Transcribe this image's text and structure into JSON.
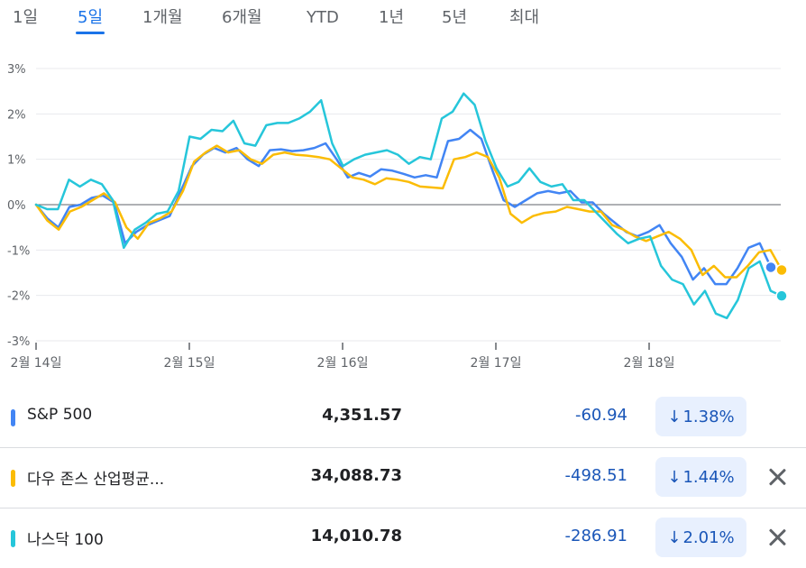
{
  "tabs": [
    {
      "label": "1일",
      "active": false
    },
    {
      "label": "5일",
      "active": true
    },
    {
      "label": "1개월",
      "active": false
    },
    {
      "label": "6개월",
      "active": false
    },
    {
      "label": "YTD",
      "active": false
    },
    {
      "label": "1년",
      "active": false
    },
    {
      "label": "5년",
      "active": false
    },
    {
      "label": "최대",
      "active": false
    }
  ],
  "chart_data": {
    "type": "line",
    "y_ticks": [
      "3%",
      "2%",
      "1%",
      "0%",
      "-1%",
      "-2%",
      "-3%"
    ],
    "ylim": [
      -3,
      3
    ],
    "x_ticks": [
      "2월 14일",
      "2월 15일",
      "2월 16일",
      "2월 17일",
      "2월 18일"
    ],
    "grid": true,
    "baseline": 0,
    "series": [
      {
        "name": "S&P 500",
        "color": "#4285f4",
        "values": [
          0,
          -0.3,
          -0.5,
          -0.05,
          0.0,
          0.15,
          0.2,
          0.05,
          -0.85,
          -0.6,
          -0.45,
          -0.35,
          -0.25,
          0.3,
          0.85,
          1.1,
          1.25,
          1.15,
          1.25,
          1.0,
          0.85,
          1.2,
          1.22,
          1.18,
          1.2,
          1.25,
          1.35,
          1.0,
          0.6,
          0.7,
          0.62,
          0.78,
          0.75,
          0.68,
          0.6,
          0.65,
          0.6,
          1.4,
          1.45,
          1.65,
          1.45,
          0.75,
          0.1,
          -0.05,
          0.1,
          0.25,
          0.3,
          0.25,
          0.3,
          0.05,
          0.05,
          -0.2,
          -0.4,
          -0.6,
          -0.7,
          -0.6,
          -0.45,
          -0.85,
          -1.15,
          -1.65,
          -1.4,
          -1.75,
          -1.75,
          -1.4,
          -0.95,
          -0.85,
          -1.38
        ]
      },
      {
        "name": "다우 존스 산업평균",
        "color": "#fbbc04",
        "values": [
          0,
          -0.35,
          -0.55,
          -0.15,
          -0.05,
          0.1,
          0.25,
          0.05,
          -0.5,
          -0.75,
          -0.4,
          -0.3,
          -0.15,
          0.3,
          0.95,
          1.15,
          1.3,
          1.15,
          1.2,
          1.0,
          0.9,
          1.1,
          1.15,
          1.1,
          1.08,
          1.05,
          1.0,
          0.8,
          0.6,
          0.55,
          0.45,
          0.58,
          0.55,
          0.5,
          0.4,
          0.38,
          0.36,
          1.0,
          1.05,
          1.15,
          1.05,
          0.6,
          -0.2,
          -0.4,
          -0.25,
          -0.18,
          -0.15,
          -0.05,
          -0.1,
          -0.15,
          -0.15,
          -0.45,
          -0.55,
          -0.7,
          -0.8,
          -0.7,
          -0.6,
          -0.75,
          -1.0,
          -1.55,
          -1.35,
          -1.6,
          -1.6,
          -1.35,
          -1.05,
          -1.0,
          -1.44
        ]
      },
      {
        "name": "나스닥 100",
        "color": "#26c6da",
        "values": [
          0,
          -0.1,
          -0.1,
          0.55,
          0.4,
          0.55,
          0.45,
          0.1,
          -0.95,
          -0.55,
          -0.4,
          -0.2,
          -0.15,
          0.3,
          1.5,
          1.45,
          1.65,
          1.62,
          1.85,
          1.35,
          1.3,
          1.75,
          1.8,
          1.8,
          1.9,
          2.05,
          2.3,
          1.35,
          0.85,
          1.0,
          1.1,
          1.15,
          1.2,
          1.1,
          0.9,
          1.05,
          1.0,
          1.9,
          2.05,
          2.45,
          2.2,
          1.4,
          0.8,
          0.4,
          0.5,
          0.8,
          0.5,
          0.4,
          0.45,
          0.1,
          0.1,
          -0.15,
          -0.4,
          -0.65,
          -0.85,
          -0.75,
          -0.7,
          -1.35,
          -1.65,
          -1.75,
          -2.2,
          -1.9,
          -2.4,
          -2.5,
          -2.1,
          -1.4,
          -1.25,
          -1.9,
          -2.01
        ]
      }
    ]
  },
  "rows": [
    {
      "name": "S&P 500",
      "price": "4,351.57",
      "change": "-60.94",
      "percent": "1.38%",
      "color": "#4285f4",
      "removable": false
    },
    {
      "name": "다우 존스 산업평균...",
      "price": "34,088.73",
      "change": "-498.51",
      "percent": "1.44%",
      "color": "#fbbc04",
      "removable": true
    },
    {
      "name": "나스닥 100",
      "price": "14,010.78",
      "change": "-286.91",
      "percent": "2.01%",
      "color": "#26c6da",
      "removable": true
    }
  ]
}
